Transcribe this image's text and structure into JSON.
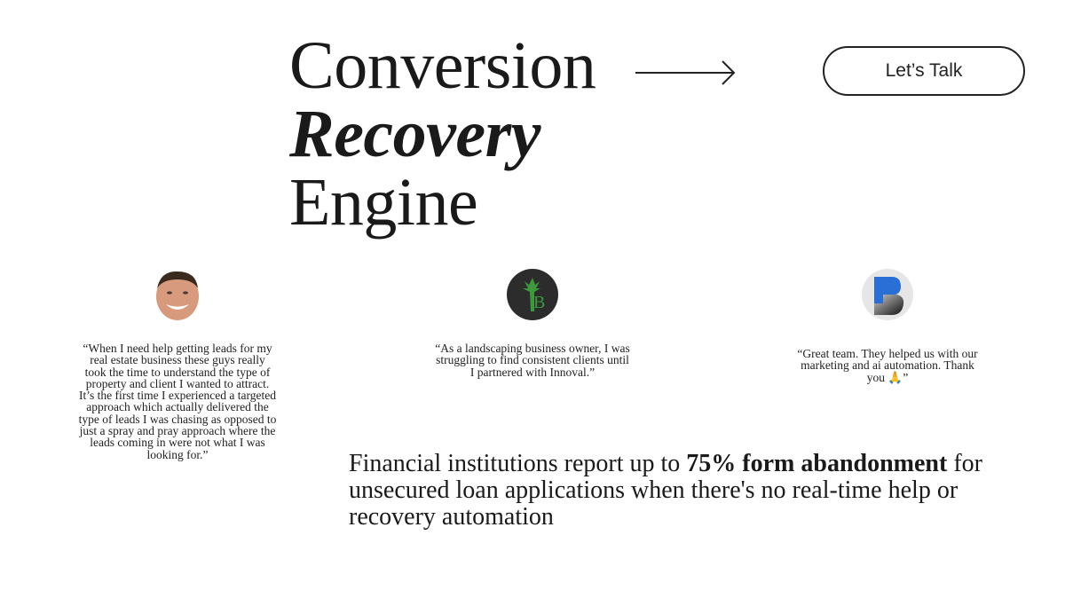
{
  "hero": {
    "line1": "Conversion",
    "line2": "Recovery",
    "line3": "Engine"
  },
  "cta": {
    "label": "Let’s Talk"
  },
  "testimonials": [
    {
      "avatar": "person-photo",
      "quote": "“When I need help getting leads for my real estate business these guys really took the time to understand the type of property and client I wanted to attract. It’s the first time I experienced a targeted approach which actually delivered the type of leads I was chasing as opposed to just a spray and pray approach where the leads coming in were not what I was looking for.”"
    },
    {
      "avatar": "palm-b-logo",
      "quote": "“As a landscaping business owner, I was struggling to find consistent clients until I partnered with Innoval.”"
    },
    {
      "avatar": "blue-b-logo",
      "quote": "“Great team. They helped us with our marketing and ai automation. Thank you 🙏”"
    }
  ],
  "stat": {
    "before": "Financial institutions report up to ",
    "bold": "75% form abandonment",
    "after": " for unsecured loan applications when there's no real-time help or recovery automation"
  }
}
